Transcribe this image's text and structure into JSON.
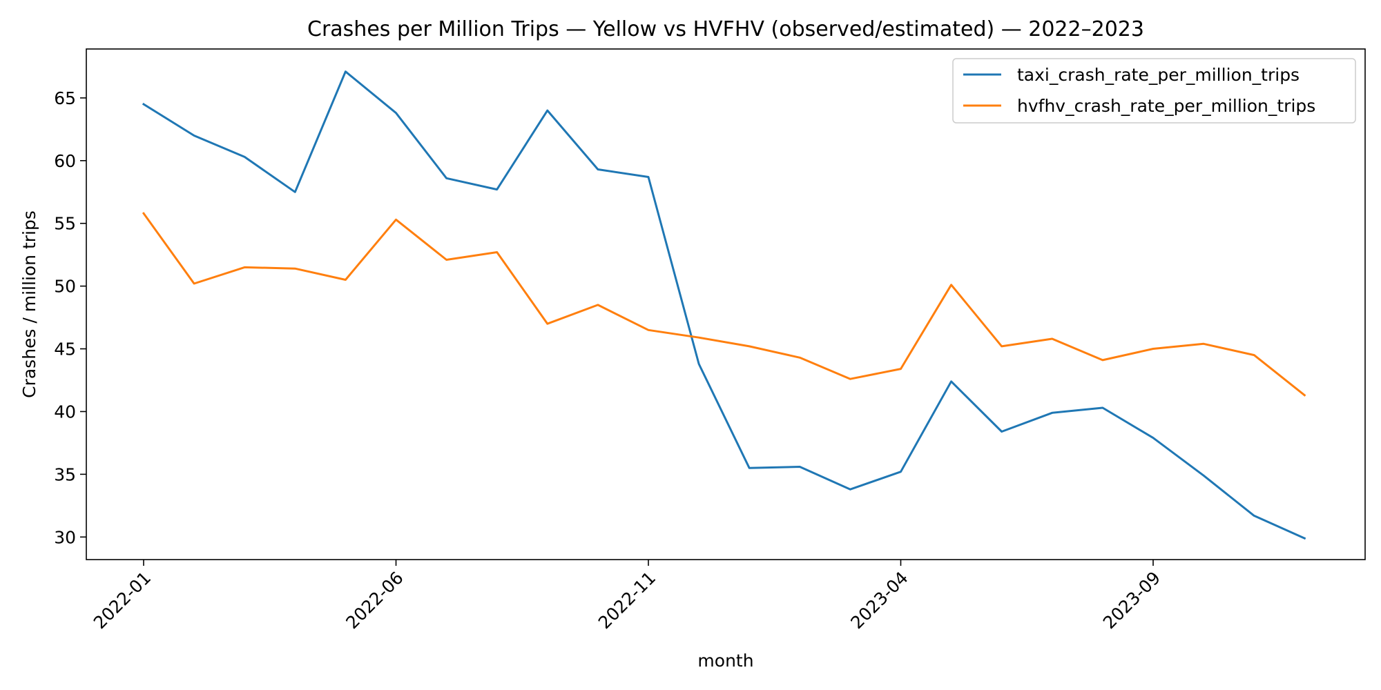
{
  "chart_data": {
    "type": "line",
    "title": "Crashes per Million Trips — Yellow vs HVFHV (observed/estimated) — 2022–2023",
    "xlabel": "month",
    "ylabel": "Crashes / million trips",
    "x": [
      "2022-01",
      "2022-02",
      "2022-03",
      "2022-04",
      "2022-05",
      "2022-06",
      "2022-07",
      "2022-08",
      "2022-09",
      "2022-10",
      "2022-11",
      "2022-12",
      "2023-01",
      "2023-02",
      "2023-03",
      "2023-04",
      "2023-05",
      "2023-06",
      "2023-07",
      "2023-08",
      "2023-09",
      "2023-10",
      "2023-11",
      "2023-12"
    ],
    "x_ticks": [
      "2022-01",
      "2022-06",
      "2022-11",
      "2023-04",
      "2023-09"
    ],
    "ylim": [
      28.2,
      68.9
    ],
    "y_ticks": [
      30,
      35,
      40,
      45,
      50,
      55,
      60,
      65
    ],
    "grid": false,
    "legend_position": "top-right",
    "series": [
      {
        "name": "taxi_crash_rate_per_million_trips",
        "color": "#1f77b4",
        "values": [
          64.5,
          62.0,
          60.3,
          57.5,
          67.1,
          63.8,
          58.6,
          57.7,
          64.0,
          59.3,
          58.7,
          43.8,
          35.5,
          35.6,
          33.8,
          35.2,
          42.4,
          38.4,
          39.9,
          40.3,
          37.9,
          34.9,
          31.7,
          29.9
        ]
      },
      {
        "name": "hvfhv_crash_rate_per_million_trips",
        "color": "#ff7f0e",
        "values": [
          55.8,
          50.2,
          51.5,
          51.4,
          50.5,
          55.3,
          52.1,
          52.7,
          47.0,
          48.5,
          46.5,
          45.9,
          45.2,
          44.3,
          42.6,
          43.4,
          50.1,
          45.2,
          45.8,
          44.1,
          45.0,
          45.4,
          44.5,
          41.3
        ]
      }
    ]
  }
}
